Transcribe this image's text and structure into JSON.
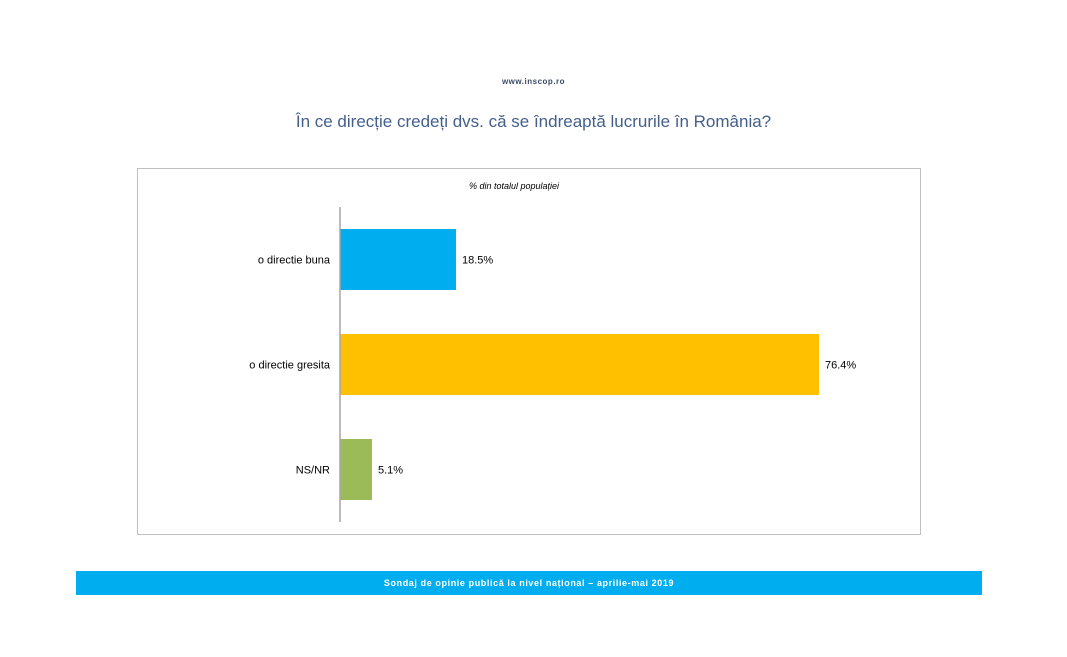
{
  "header": {
    "site_url": "www.inscop.ro",
    "question": "În ce direcție credeți dvs. că se îndreaptă lucrurile în România?"
  },
  "chart_data": {
    "type": "bar",
    "orientation": "horizontal",
    "subtitle": "% din totalul populației",
    "categories": [
      "o directie buna",
      "o directie gresita",
      "NS/NR"
    ],
    "values": [
      18.5,
      76.4,
      5.1
    ],
    "value_labels": [
      "18.5%",
      "76.4%",
      "5.1%"
    ],
    "colors": [
      "#00aeef",
      "#ffc000",
      "#9bbb59"
    ],
    "xlim": [
      0,
      100
    ],
    "grid": false,
    "legend": "none"
  },
  "footer": {
    "text": "Sondaj de opinie publică la nivel național – aprilie-mai 2019"
  }
}
